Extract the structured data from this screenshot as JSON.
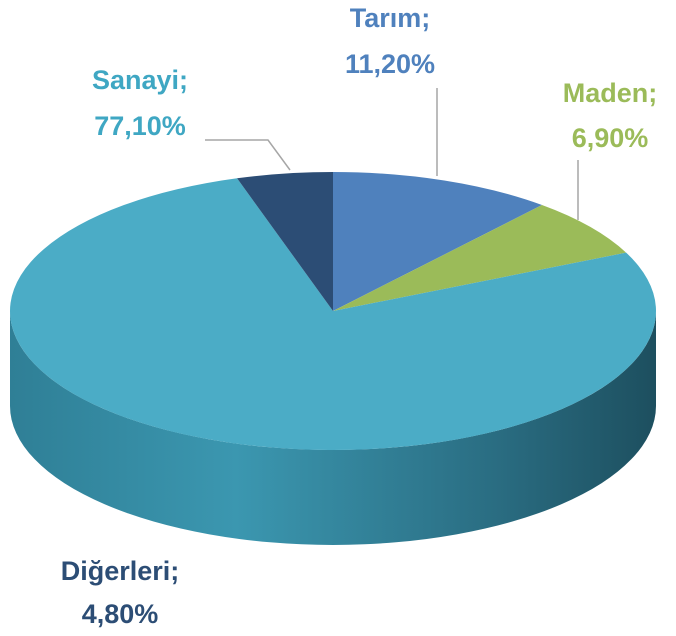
{
  "chart_data": {
    "type": "pie",
    "categories": [
      "Tarım",
      "Maden",
      "Sanayi",
      "Diğerleri"
    ],
    "values": [
      11.2,
      6.9,
      77.1,
      4.8
    ],
    "value_labels": [
      "11,20%",
      "6,90%",
      "77,10%",
      "4,80%"
    ],
    "separator": ";",
    "colors": [
      "#4f81bd",
      "#9bbb59",
      "#4bacc6",
      "#2c4d75"
    ],
    "label_colors": [
      "#4f81bd",
      "#9bbb59",
      "#3fa7c3",
      "#2c4d75"
    ]
  }
}
